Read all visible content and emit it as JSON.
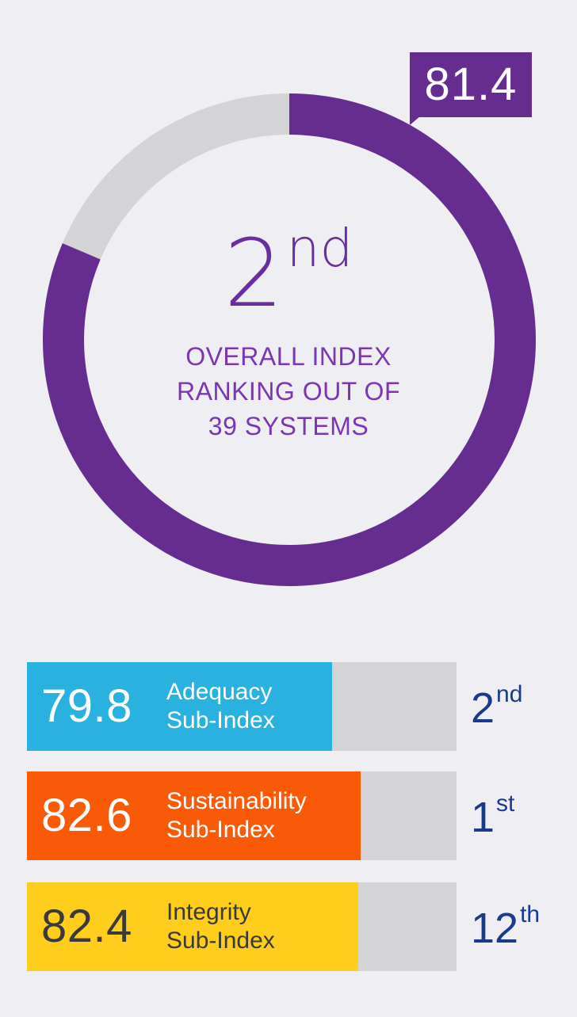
{
  "colors": {
    "background": "#efeef2",
    "accent_purple": "#652d90",
    "donut_remainder": "#d4d3d6",
    "rank_blue": "#1a3a8c"
  },
  "overall": {
    "score": "81.4",
    "rank_number": "2",
    "rank_suffix": "nd",
    "caption_lines": [
      "OVERALL INDEX",
      "RANKING OUT OF",
      "39 SYSTEMS"
    ]
  },
  "chart_data": [
    {
      "type": "pie",
      "values": [
        81.4,
        18.6
      ],
      "colors": [
        "#652d90",
        "#d4d3d6"
      ],
      "ylim": [
        0,
        100
      ]
    },
    {
      "type": "bar",
      "categories": [
        "Adequacy Sub-Index",
        "Sustainability Sub-Index",
        "Integrity Sub-Index"
      ],
      "values": [
        79.8,
        82.6,
        82.4
      ],
      "ylim": [
        0,
        100
      ],
      "orientation": "horizontal"
    }
  ],
  "subindices": [
    {
      "value": "79.8",
      "label_lines": [
        "Adequacy",
        "Sub-Index"
      ],
      "rank_number": "2",
      "rank_suffix": "nd",
      "color": "#29b2e0",
      "text_color": "#ffffff"
    },
    {
      "value": "82.6",
      "label_lines": [
        "Sustainability",
        "Sub-Index"
      ],
      "rank_number": "1",
      "rank_suffix": "st",
      "color": "#f85a07",
      "text_color": "#ffffff"
    },
    {
      "value": "82.4",
      "label_lines": [
        "Integrity",
        "Sub-Index"
      ],
      "rank_number": "12",
      "rank_suffix": "th",
      "color": "#ffcd1c",
      "text_color": "#3a3a3a"
    }
  ]
}
